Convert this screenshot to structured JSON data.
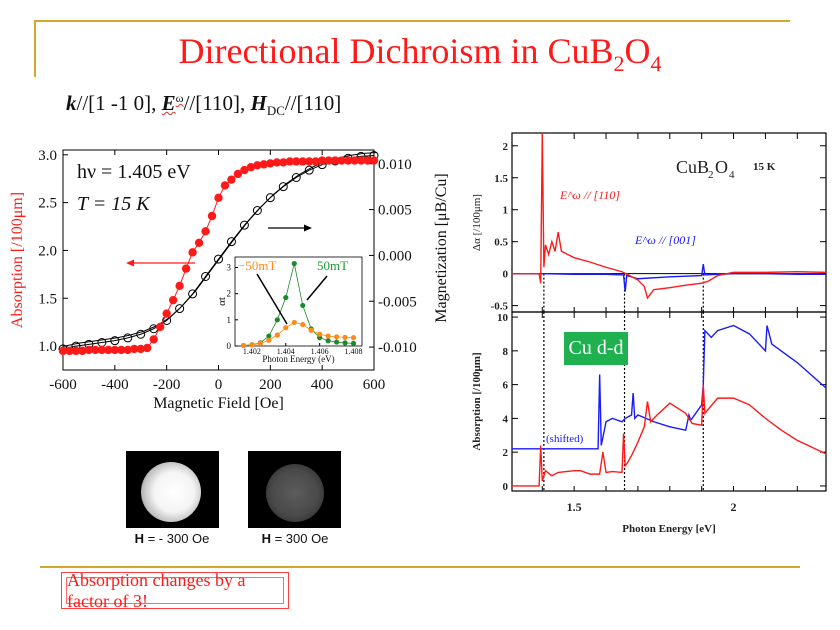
{
  "slide": {
    "title_main": "Directional Dichroism in CuB",
    "title_sub1": "2",
    "title_mid": "O",
    "title_sub2": "4",
    "subtitle": {
      "k": "k",
      "part1": "//[1 -1 0], ",
      "E": "E",
      "omega": "ω",
      "part2": "//[110], ",
      "H": "H",
      "dc": "DC",
      "part3": "//[110]"
    },
    "images": [
      {
        "label_bold": "H",
        "label_rest": " = - 300 Oe",
        "brightness": "bright"
      },
      {
        "label_bold": "H",
        "label_rest": " = 300 Oe",
        "brightness": "dim"
      }
    ],
    "callout": "Absorption changes by a factor of 3!",
    "badge": "Cu d-d",
    "colors": {
      "accent_red": "#ff1a1a",
      "frame_gold": "#d4a82a",
      "badge_green": "#1fb050"
    }
  },
  "chart_data": [
    {
      "type": "scatter",
      "title": "",
      "annotations": [
        "hν = 1.405 eV",
        "T = 15 K"
      ],
      "xlabel": "Magnetic Field [Oe]",
      "ylabel": "Absorption [/100μm]",
      "y2label": "Magnetization [μB/Cu]",
      "xlim": [
        -600,
        600
      ],
      "ylim": [
        0.75,
        3.05
      ],
      "y2lim": [
        -0.0125,
        0.0115
      ],
      "xticks": [
        -600,
        -400,
        -200,
        0,
        200,
        400,
        600
      ],
      "yticks": [
        1.0,
        1.5,
        2.0,
        2.5,
        3.0
      ],
      "y2ticks": [
        -0.01,
        -0.005,
        0.0,
        0.005,
        0.01
      ],
      "ytick_labels": [
        "1.0",
        "1.5",
        "2.0",
        "2.5",
        "3.0"
      ],
      "y2tick_labels": [
        "-0.010",
        "-0.005",
        "0.000",
        "0.005",
        "0.010"
      ],
      "series": [
        {
          "name": "Absorption",
          "axis": "left",
          "color": "#ff1a1a",
          "marker": "filled-circle",
          "x": [
            -600,
            -575,
            -550,
            -525,
            -500,
            -475,
            -450,
            -425,
            -400,
            -375,
            -350,
            -325,
            -300,
            -275,
            -250,
            -225,
            -200,
            -175,
            -150,
            -125,
            -100,
            -75,
            -50,
            -25,
            0,
            25,
            50,
            75,
            100,
            125,
            150,
            175,
            200,
            225,
            250,
            275,
            300,
            325,
            350,
            375,
            400,
            425,
            450,
            475,
            500,
            525,
            550,
            575,
            600
          ],
          "y": [
            0.95,
            0.95,
            0.95,
            0.95,
            0.96,
            0.96,
            0.96,
            0.96,
            0.96,
            0.96,
            0.96,
            0.97,
            0.97,
            0.98,
            1.07,
            1.2,
            1.34,
            1.48,
            1.63,
            1.81,
            1.98,
            2.08,
            2.2,
            2.36,
            2.55,
            2.68,
            2.74,
            2.8,
            2.84,
            2.87,
            2.89,
            2.9,
            2.91,
            2.92,
            2.92,
            2.93,
            2.93,
            2.93,
            2.93,
            2.93,
            2.94,
            2.94,
            2.94,
            2.94,
            2.94,
            2.94,
            2.94,
            2.94,
            2.94
          ]
        },
        {
          "name": "Magnetization",
          "axis": "right",
          "color": "#000000",
          "marker": "open-circle",
          "x": [
            -600,
            -550,
            -500,
            -450,
            -400,
            -350,
            -300,
            -250,
            -200,
            -150,
            -100,
            -50,
            0,
            50,
            100,
            150,
            200,
            250,
            300,
            350,
            400,
            450,
            500,
            550,
            600
          ],
          "y": [
            -0.0102,
            -0.0099,
            -0.0097,
            -0.0095,
            -0.0093,
            -0.009,
            -0.0086,
            -0.008,
            -0.0071,
            -0.0058,
            -0.0042,
            -0.0023,
            -0.0004,
            0.0015,
            0.0033,
            0.0049,
            0.0063,
            0.0075,
            0.0085,
            0.0093,
            0.0099,
            0.0103,
            0.0106,
            0.0108,
            0.0109
          ]
        }
      ],
      "arrows": [
        {
          "points_to": "left",
          "color": "#ff1a1a"
        },
        {
          "points_to": "right",
          "color": "#000000"
        }
      ],
      "inset": {
        "type": "line",
        "xlabel": "Photon Energy (eV)",
        "ylabel": "αt",
        "xlim": [
          1.401,
          1.4085
        ],
        "ylim": [
          0,
          3.4
        ],
        "xticks": [
          1.402,
          1.404,
          1.406,
          1.408
        ],
        "xtick_labels": [
          "1.402",
          "1.404",
          "1.406",
          "1.408"
        ],
        "yticks": [
          0,
          1,
          2,
          3
        ],
        "ytick_labels": [
          "0",
          "1",
          "2",
          "3"
        ],
        "series": [
          {
            "name": "50mT",
            "color": "#1a8a2a",
            "x": [
              1.4015,
              1.402,
              1.4025,
              1.403,
              1.4035,
              1.404,
              1.4045,
              1.405,
              1.4055,
              1.406,
              1.4065,
              1.407,
              1.4075,
              1.408
            ],
            "y": [
              0.02,
              0.05,
              0.12,
              0.38,
              1.0,
              1.85,
              3.15,
              1.55,
              0.65,
              0.32,
              0.2,
              0.15,
              0.12,
              0.1
            ]
          },
          {
            "name": "-50mT",
            "color": "#ff8a1a",
            "x": [
              1.4015,
              1.402,
              1.4025,
              1.403,
              1.4035,
              1.404,
              1.4045,
              1.405,
              1.4055,
              1.406,
              1.4065,
              1.407,
              1.4075,
              1.408
            ],
            "y": [
              0.02,
              0.04,
              0.1,
              0.22,
              0.42,
              0.7,
              0.9,
              0.82,
              0.6,
              0.45,
              0.38,
              0.35,
              0.33,
              0.32
            ]
          }
        ],
        "labels": [
          "−50mT",
          "50mT"
        ]
      }
    },
    {
      "type": "line",
      "title": "CuB2O4",
      "annotation": "15 K",
      "xlabel": "Photon Energy [eV]",
      "xlim": [
        1.305,
        2.29
      ],
      "xticks": [
        1.5,
        2.0
      ],
      "xtick_labels": [
        "1.5",
        "2"
      ],
      "panels": [
        {
          "name": "top",
          "ylabel": "Δα [/100μm]",
          "ylim": [
            -0.6,
            2.2
          ],
          "yticks": [
            -0.5,
            0,
            0.5,
            1,
            1.5,
            2
          ],
          "ytick_labels": [
            "-0.5",
            "0",
            "0.5",
            "1",
            "1.5",
            "2"
          ],
          "series": [
            {
              "name": "E^ω // [110]",
              "color": "#ff1a1a",
              "x": [
                1.305,
                1.39,
                1.395,
                1.4,
                1.405,
                1.41,
                1.42,
                1.43,
                1.44,
                1.45,
                1.46,
                1.48,
                1.5,
                1.55,
                1.6,
                1.65,
                1.67,
                1.7,
                1.72,
                1.73,
                1.75,
                1.8,
                1.85,
                1.9,
                1.92,
                1.95,
                2.0,
                2.1,
                2.2,
                2.29
              ],
              "y": [
                0,
                0,
                -0.15,
                2.2,
                0.1,
                0.45,
                0.3,
                0.5,
                0.35,
                0.65,
                0.35,
                0.3,
                0.25,
                0.18,
                0.1,
                0.03,
                -0.02,
                -0.1,
                -0.2,
                -0.38,
                -0.25,
                -0.22,
                -0.18,
                -0.15,
                -0.12,
                -0.03,
                0.02,
                0.02,
                0.03,
                0.02
              ]
            },
            {
              "name": "E^ω // [001]",
              "color": "#1a1aff",
              "x": [
                1.305,
                1.4,
                1.5,
                1.6,
                1.655,
                1.66,
                1.665,
                1.7,
                1.8,
                1.9,
                1.905,
                1.91,
                1.95,
                2.0,
                2.1,
                2.2,
                2.29
              ],
              "y": [
                0,
                0,
                -0.01,
                -0.01,
                -0.02,
                -0.28,
                -0.03,
                -0.08,
                -0.05,
                -0.03,
                0.15,
                -0.02,
                -0.01,
                0.0,
                0.0,
                -0.01,
                -0.01
              ]
            }
          ],
          "labels": [
            "E^ω // [110]",
            "E^ω // [001]"
          ]
        },
        {
          "name": "bottom",
          "ylabel": "Absorption [/100μm]",
          "ylim": [
            -0.3,
            10.3
          ],
          "yticks": [
            0,
            2,
            4,
            6,
            8,
            10
          ],
          "ytick_labels": [
            "0",
            "2",
            "4",
            "6",
            "8",
            "10"
          ],
          "series": [
            {
              "name": "E^ω // [110]",
              "color": "#ff1a1a",
              "x": [
                1.305,
                1.39,
                1.395,
                1.4,
                1.41,
                1.43,
                1.45,
                1.5,
                1.52,
                1.55,
                1.58,
                1.59,
                1.6,
                1.62,
                1.65,
                1.655,
                1.66,
                1.665,
                1.68,
                1.7,
                1.72,
                1.73,
                1.74,
                1.76,
                1.8,
                1.85,
                1.87,
                1.9,
                1.905,
                1.91,
                1.95,
                2.0,
                2.05,
                2.1,
                2.15,
                2.2,
                2.29
              ],
              "y": [
                0,
                0,
                2.4,
                0.3,
                0.9,
                0.6,
                0.8,
                0.9,
                0.9,
                0.7,
                0.7,
                2.0,
                0.8,
                0.85,
                0.8,
                3.1,
                1.2,
                1.3,
                1.8,
                2.6,
                3.5,
                5.0,
                3.8,
                4.2,
                4.9,
                4.3,
                3.7,
                3.6,
                6.0,
                4.3,
                5.2,
                5.2,
                4.8,
                4.0,
                3.3,
                2.7,
                1.9
              ]
            },
            {
              "name": "E^ω // [001] (shifted)",
              "color": "#1a1aff",
              "x": [
                1.305,
                1.4,
                1.5,
                1.575,
                1.58,
                1.585,
                1.6,
                1.62,
                1.65,
                1.66,
                1.68,
                1.685,
                1.69,
                1.7,
                1.75,
                1.8,
                1.85,
                1.86,
                1.865,
                1.87,
                1.9,
                1.905,
                1.91,
                1.93,
                1.95,
                2.0,
                2.05,
                2.1,
                2.105,
                2.12,
                2.2,
                2.29
              ],
              "y": [
                2.2,
                2.2,
                2.2,
                2.2,
                6.6,
                2.4,
                3.8,
                4.0,
                3.8,
                4.0,
                4.2,
                5.5,
                4.0,
                4.2,
                3.8,
                3.5,
                3.3,
                4.2,
                3.9,
                4.0,
                4.8,
                6.0,
                9.2,
                8.8,
                9.2,
                9.5,
                9.0,
                8.0,
                9.5,
                8.4,
                7.3,
                5.8
              ]
            }
          ],
          "labels": [
            "(shifted)"
          ]
        }
      ],
      "vertical_dotted_lines_x": [
        1.405,
        1.658,
        1.905
      ]
    }
  ]
}
